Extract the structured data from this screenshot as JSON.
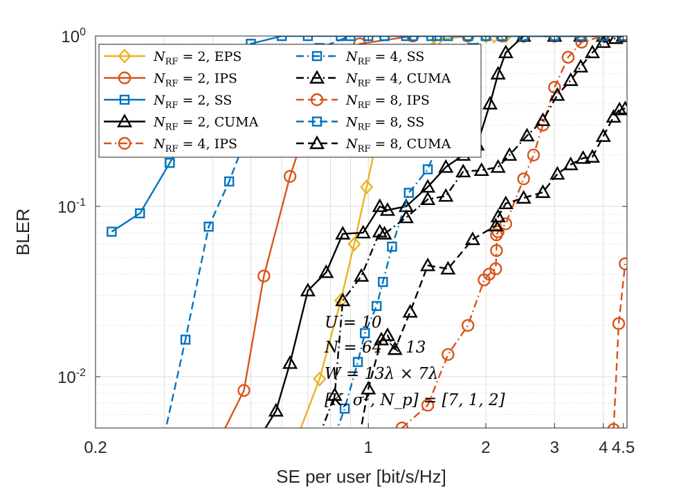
{
  "chart_data": {
    "type": "line",
    "xlabel": "SE per user [bit/s/Hz]",
    "ylabel": "BLER",
    "xlim": [
      0.2,
      4.6
    ],
    "ylim": [
      0.005,
      1
    ],
    "yscale": "log",
    "grid": true,
    "legend_position": "top-left",
    "x_ticks": [
      {
        "v": 0.2,
        "label": "0.2"
      },
      {
        "v": 1,
        "label": "1"
      },
      {
        "v": 2,
        "label": "2"
      },
      {
        "v": 3,
        "label": "3"
      },
      {
        "v": 4,
        "label": "4"
      },
      {
        "v": 4.5,
        "label": "4.5"
      }
    ],
    "y_ticks": [
      {
        "v": 0.01,
        "base": "10",
        "exp": "-2"
      },
      {
        "v": 0.1,
        "base": "10",
        "exp": "-1"
      },
      {
        "v": 1,
        "base": "10",
        "exp": "0"
      }
    ],
    "annotations": [
      "U = 10",
      "N = 64 × 13",
      "W = 13λ × 7λ",
      "[K, σ², N_p] = [7, 1, 2]"
    ],
    "series": [
      {
        "name": "N_RF = 2, EPS",
        "color": "#EDB120",
        "dash": "solid",
        "marker": "diamond",
        "x": [
          0.66,
          0.75,
          0.85,
          0.92,
          0.99,
          1.07,
          1.2,
          1.5,
          1.8,
          2.0,
          2.1,
          2.25,
          2.5,
          3.0,
          3.5,
          4.0,
          4.5
        ],
        "y": [
          0.0045,
          0.0097,
          0.028,
          0.06,
          0.13,
          0.3,
          0.65,
          0.95,
          1.0,
          1.0,
          1.0,
          1.0,
          1.0,
          1.0,
          1.0,
          1.0,
          1.0
        ]
      },
      {
        "name": "N_RF = 2, IPS",
        "color": "#D95319",
        "dash": "solid",
        "marker": "circle",
        "x": [
          0.42,
          0.48,
          0.54,
          0.63,
          0.75,
          0.95,
          1.3,
          1.8,
          2.2,
          2.5,
          3.0,
          3.5,
          4.0,
          4.5
        ],
        "y": [
          0.0045,
          0.0083,
          0.039,
          0.15,
          0.5,
          0.9,
          1.0,
          1.0,
          1.0,
          1.0,
          1.0,
          1.0,
          1.0,
          1.0
        ]
      },
      {
        "name": "N_RF = 2, SS",
        "color": "#0072BD",
        "dash": "solid",
        "marker": "square",
        "x": [
          0.22,
          0.26,
          0.31,
          0.4,
          0.5,
          0.6,
          0.7,
          0.85,
          1.0,
          1.1,
          1.25,
          1.45,
          1.6,
          1.8,
          2.0,
          2.2,
          2.5,
          3.0,
          3.5,
          4.0,
          4.5
        ],
        "y": [
          0.071,
          0.091,
          0.18,
          0.5,
          0.9,
          1.0,
          1.0,
          1.0,
          1.0,
          1.0,
          1.0,
          1.0,
          1.0,
          1.0,
          1.0,
          1.0,
          1.0,
          1.0,
          1.0,
          1.0,
          1.0
        ]
      },
      {
        "name": "N_RF = 2, CUMA",
        "color": "#000000",
        "dash": "solid",
        "marker": "triangle",
        "x": [
          0.53,
          0.58,
          0.63,
          0.7,
          0.78,
          0.86,
          0.97,
          1.07,
          1.12,
          1.25,
          1.42,
          1.58,
          1.75,
          1.9,
          2.05,
          2.15,
          2.25,
          2.5,
          3.0,
          3.5,
          4.0,
          4.5
        ],
        "y": [
          0.0045,
          0.0063,
          0.012,
          0.032,
          0.041,
          0.069,
          0.07,
          0.1,
          0.095,
          0.1,
          0.13,
          0.17,
          0.2,
          0.23,
          0.4,
          0.6,
          0.8,
          1.0,
          1.0,
          1.0,
          1.0,
          1.0
        ]
      },
      {
        "name": "N_RF = 4, IPS",
        "color": "#D95319",
        "dash": "dashdot",
        "marker": "circle",
        "x": [
          1.22,
          1.42,
          1.6,
          1.8,
          1.98,
          2.04,
          2.12,
          2.13,
          2.13,
          2.15,
          2.25,
          2.5,
          2.65,
          2.8,
          3.0,
          3.25,
          3.52,
          4.0,
          4.5
        ],
        "y": [
          0.005,
          0.0068,
          0.0135,
          0.02,
          0.037,
          0.04,
          0.043,
          0.055,
          0.068,
          0.071,
          0.079,
          0.145,
          0.2,
          0.3,
          0.5,
          0.75,
          0.92,
          1.0,
          1.0
        ]
      },
      {
        "name": "N_RF = 4, SS",
        "color": "#0072BD",
        "dash": "dashdot",
        "marker": "square",
        "x": [
          0.82,
          0.87,
          0.94,
          0.98,
          1.05,
          1.09,
          1.15,
          1.27,
          1.42,
          1.58,
          1.72,
          1.85,
          2.0,
          2.2,
          2.5,
          3.0,
          3.5,
          4.0,
          4.5
        ],
        "y": [
          0.0045,
          0.0065,
          0.0122,
          0.018,
          0.026,
          0.036,
          0.058,
          0.12,
          0.165,
          0.3,
          0.55,
          0.85,
          1.0,
          1.0,
          1.0,
          1.0,
          1.0,
          1.0,
          1.0
        ]
      },
      {
        "name": "N_RF = 4, CUMA",
        "color": "#000000",
        "dash": "dashdot",
        "marker": "triangle",
        "x": [
          0.75,
          0.82,
          0.86,
          0.96,
          1.07,
          1.1,
          1.25,
          1.42,
          1.58,
          1.75,
          1.95,
          2.15,
          2.3,
          2.55,
          2.8,
          3.05,
          3.3,
          3.5,
          3.75,
          4.0,
          4.3,
          4.5
        ],
        "y": [
          0.0045,
          0.0078,
          0.028,
          0.039,
          0.071,
          0.069,
          0.086,
          0.11,
          0.115,
          0.16,
          0.163,
          0.17,
          0.2,
          0.26,
          0.32,
          0.45,
          0.55,
          0.66,
          0.8,
          0.92,
          0.97,
          1.0
        ]
      },
      {
        "name": "N_RF = 8, IPS",
        "color": "#D95319",
        "dash": "dashed",
        "marker": "circle",
        "x": [
          4.25,
          4.38,
          4.55
        ],
        "y": [
          0.0049,
          0.0205,
          0.046
        ]
      },
      {
        "name": "N_RF = 8, SS",
        "color": "#0072BD",
        "dash": "dashed",
        "marker": "square",
        "x": [
          0.3,
          0.34,
          0.39,
          0.44,
          0.5,
          0.6,
          0.75,
          0.9,
          1.1,
          1.3,
          1.5,
          1.8,
          2.2,
          2.5,
          3.0,
          3.5,
          4.0,
          4.5
        ],
        "y": [
          0.0045,
          0.0165,
          0.076,
          0.14,
          0.3,
          0.55,
          0.85,
          1.0,
          1.0,
          1.0,
          1.0,
          1.0,
          1.0,
          1.0,
          1.0,
          1.0,
          1.0,
          1.0
        ]
      },
      {
        "name": "N_RF = 8, CUMA",
        "color": "#000000",
        "dash": "dashed",
        "marker": "triangle",
        "x": [
          0.95,
          1.0,
          1.08,
          1.12,
          1.17,
          1.28,
          1.42,
          1.6,
          1.85,
          2.12,
          2.15,
          2.25,
          2.5,
          2.8,
          3.05,
          3.3,
          3.55,
          3.75,
          4.0,
          4.25,
          4.4,
          4.55
        ],
        "y": [
          0.0045,
          0.0085,
          0.0165,
          0.0175,
          0.0145,
          0.024,
          0.045,
          0.043,
          0.064,
          0.077,
          0.087,
          0.104,
          0.112,
          0.121,
          0.155,
          0.176,
          0.192,
          0.195,
          0.258,
          0.335,
          0.37,
          0.375
        ]
      }
    ]
  }
}
